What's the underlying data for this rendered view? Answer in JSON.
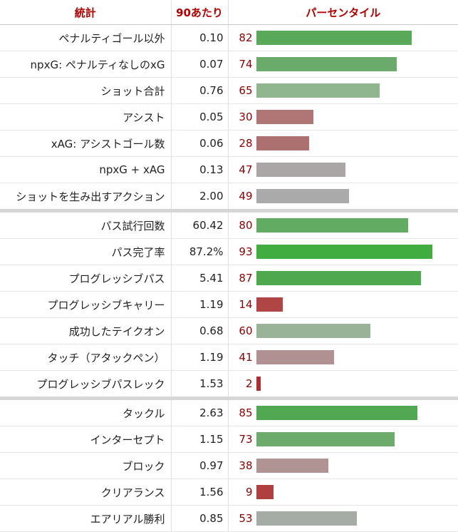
{
  "header": {
    "stat": "統計",
    "per90": "90あたり",
    "percentile": "パーセンタイル"
  },
  "chart_data": {
    "type": "bar",
    "orientation": "horizontal",
    "xlim": [
      0,
      100
    ],
    "groups": [
      [
        {
          "label": "ペナルティゴール以外",
          "per90": "0.10",
          "percentile": 82,
          "color": "#5aa95a"
        },
        {
          "label": "npxG: ペナルティなしのxG",
          "per90": "0.07",
          "percentile": 74,
          "color": "#6aaa6a"
        },
        {
          "label": "ショット合計",
          "per90": "0.76",
          "percentile": 65,
          "color": "#8fb68f"
        },
        {
          "label": "アシスト",
          "per90": "0.05",
          "percentile": 30,
          "color": "#b07575"
        },
        {
          "label": "xAG: アシストゴール数",
          "per90": "0.06",
          "percentile": 28,
          "color": "#ad7070"
        },
        {
          "label": "npxG + xAG",
          "per90": "0.13",
          "percentile": 47,
          "color": "#aaa6a6"
        },
        {
          "label": "ショットを生み出すアクション",
          "per90": "2.00",
          "percentile": 49,
          "color": "#aaaaaa"
        }
      ],
      [
        {
          "label": "パス試行回数",
          "per90": "60.42",
          "percentile": 80,
          "color": "#62ab62"
        },
        {
          "label": "パス完了率",
          "per90": "87.2%",
          "percentile": 93,
          "color": "#41ad41"
        },
        {
          "label": "プログレッシブパス",
          "per90": "5.41",
          "percentile": 87,
          "color": "#4ea84e"
        },
        {
          "label": "プログレッシブキャリー",
          "per90": "1.19",
          "percentile": 14,
          "color": "#b04545"
        },
        {
          "label": "成功したテイクオン",
          "per90": "0.68",
          "percentile": 60,
          "color": "#99b399"
        },
        {
          "label": "タッチ（アタックペン）",
          "per90": "1.19",
          "percentile": 41,
          "color": "#b09090"
        },
        {
          "label": "プログレッシブパスレック",
          "per90": "1.53",
          "percentile": 2,
          "color": "#a83030"
        }
      ],
      [
        {
          "label": "タックル",
          "per90": "2.63",
          "percentile": 85,
          "color": "#52a852"
        },
        {
          "label": "インターセプト",
          "per90": "1.15",
          "percentile": 73,
          "color": "#6cab6c"
        },
        {
          "label": "ブロック",
          "per90": "0.97",
          "percentile": 38,
          "color": "#b09494"
        },
        {
          "label": "クリアランス",
          "per90": "1.56",
          "percentile": 9,
          "color": "#b04040"
        },
        {
          "label": "エアリアル勝利",
          "per90": "0.85",
          "percentile": 53,
          "color": "#a5aca5"
        }
      ]
    ]
  }
}
